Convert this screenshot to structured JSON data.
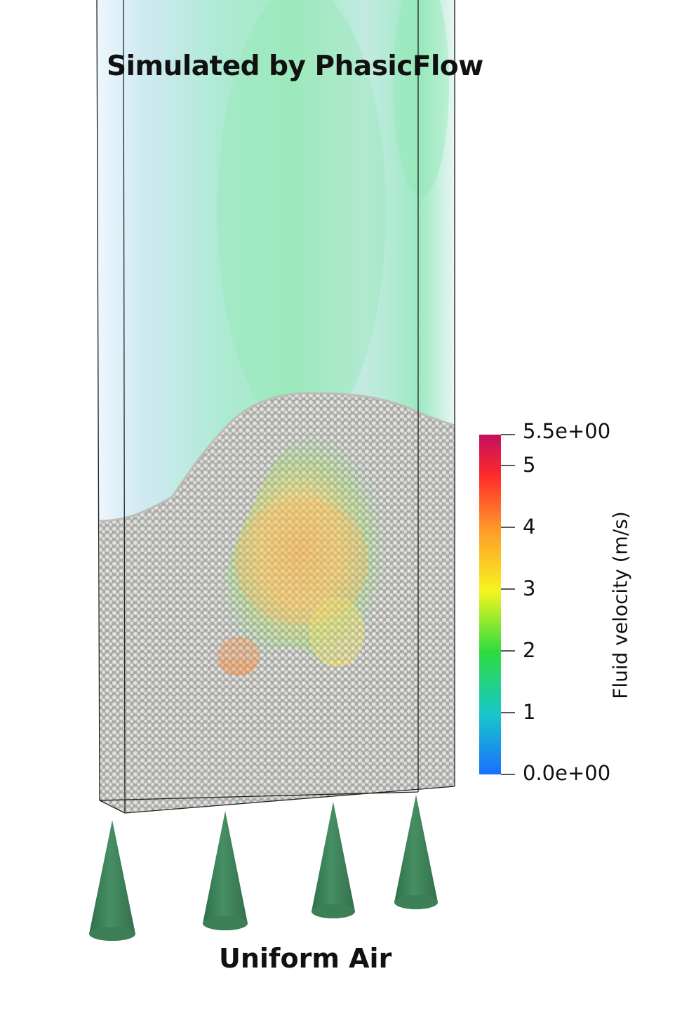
{
  "title": "Simulated by PhasicFlow",
  "caption": "Uniform Air",
  "colorbar": {
    "title": "Fluid velocity (m/s)",
    "min_label": "0.0e+00",
    "max_label": "5.5e+00",
    "min": 0.0,
    "max": 5.5,
    "ticks": [
      {
        "value": 1,
        "label": "1"
      },
      {
        "value": 2,
        "label": "2"
      },
      {
        "value": 3,
        "label": "3"
      },
      {
        "value": 4,
        "label": "4"
      },
      {
        "value": 5,
        "label": "5"
      }
    ],
    "colors": [
      "#1a6fff",
      "#18c8c8",
      "#2ddc40",
      "#f5f51e",
      "#ff9a2a",
      "#ff2a2a",
      "#c2105e"
    ]
  },
  "colors": {
    "particles": "#c8c8c4",
    "cones": "#3f8a5f",
    "fluid_low": "#cfeef5",
    "fluid_mid": "#8fe8b8"
  }
}
